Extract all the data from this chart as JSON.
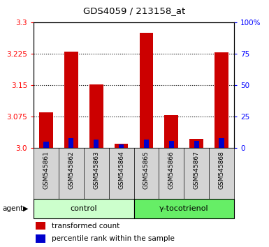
{
  "title": "GDS4059 / 213158_at",
  "samples": [
    "GSM545861",
    "GSM545862",
    "GSM545863",
    "GSM545864",
    "GSM545865",
    "GSM545866",
    "GSM545867",
    "GSM545868"
  ],
  "transformed_count": [
    3.085,
    3.23,
    3.152,
    3.01,
    3.275,
    3.078,
    3.022,
    3.228
  ],
  "percentile_rank": [
    5,
    8,
    7,
    3,
    7,
    6,
    6,
    8
  ],
  "bar_color_red": "#cc0000",
  "bar_color_blue": "#0000cc",
  "ylim_left": [
    3.0,
    3.3
  ],
  "ylim_right": [
    0,
    100
  ],
  "yticks_left": [
    3.0,
    3.075,
    3.15,
    3.225,
    3.3
  ],
  "yticks_right": [
    0,
    25,
    50,
    75,
    100
  ],
  "grid_lines": [
    3.075,
    3.15,
    3.225
  ],
  "bar_width": 0.55,
  "blue_bar_width": 0.2,
  "background_color": "#ffffff",
  "plot_bg": "#ffffff",
  "sample_box_color": "#d4d4d4",
  "control_color": "#ccffcc",
  "toco_color": "#66ee66",
  "legend_entries": [
    "transformed count",
    "percentile rank within the sample"
  ],
  "agent_label": "agent"
}
